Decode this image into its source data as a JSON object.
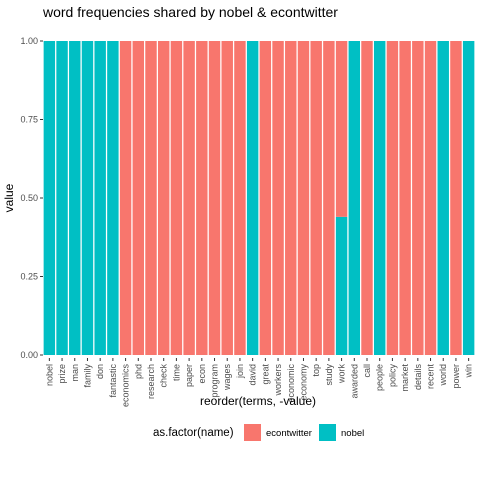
{
  "chart_data": {
    "type": "bar",
    "title": "word frequencies shared by nobel & econtwitter",
    "xlabel": "reorder(terms, -value)",
    "ylabel": "value",
    "ylim": [
      0,
      1
    ],
    "yticks": [
      "0.00",
      "0.25",
      "0.50",
      "0.75",
      "1.00"
    ],
    "stacked": true,
    "grid": false,
    "legend_position": "bottom",
    "legend_title": "as.factor(name)",
    "categories": [
      "nobel",
      "prize",
      "man",
      "family",
      "don",
      "fantastic",
      "economics",
      "phd",
      "research",
      "check",
      "time",
      "paper",
      "econ",
      "program",
      "wages",
      "join",
      "david",
      "great",
      "workers",
      "economic",
      "economy",
      "top",
      "study",
      "work",
      "awarded",
      "call",
      "people",
      "policy",
      "market",
      "details",
      "recent",
      "world",
      "power",
      "win"
    ],
    "series": [
      {
        "name": "econtwitter",
        "color": "#F8766D",
        "values": [
          0,
          0,
          0,
          0,
          0,
          0,
          1,
          1,
          1,
          1,
          1,
          1,
          1,
          1,
          1,
          1,
          0,
          1,
          1,
          1,
          1,
          1,
          1,
          0.56,
          0,
          1,
          0,
          1,
          1,
          1,
          1,
          0,
          1,
          0
        ]
      },
      {
        "name": "nobel",
        "color": "#00BFC4",
        "values": [
          1,
          1,
          1,
          1,
          1,
          1,
          0,
          0,
          0,
          0,
          0,
          0,
          0,
          0,
          0,
          0,
          1,
          0,
          0,
          0,
          0,
          0,
          0,
          0.44,
          1,
          0,
          1,
          0,
          0,
          0,
          0,
          1,
          0,
          1
        ]
      }
    ]
  }
}
